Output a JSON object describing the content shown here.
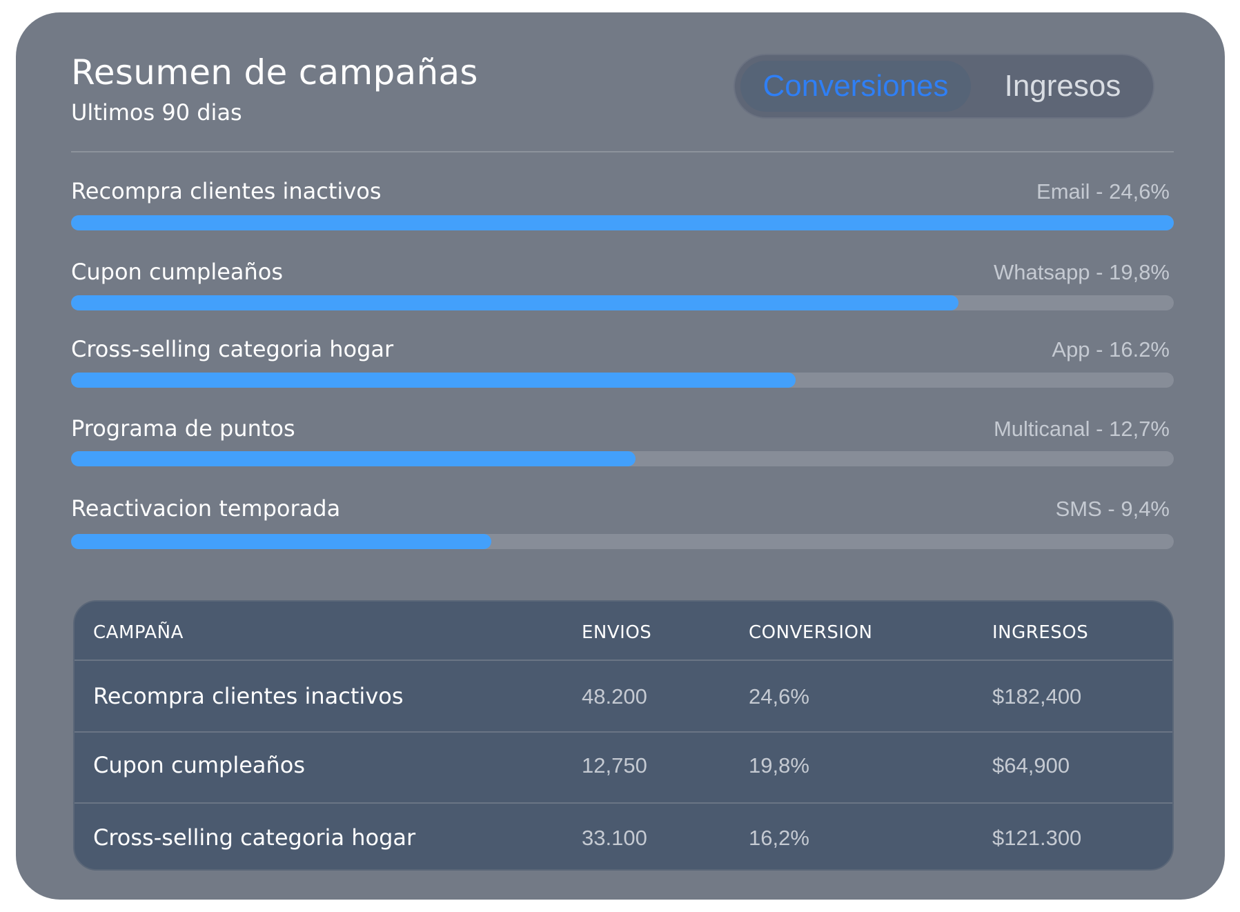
{
  "header": {
    "title": "Resumen de campañas",
    "subtitle": "Ultimos 90 dias"
  },
  "toggle": {
    "options": [
      {
        "label": "Conversiones",
        "active": true
      },
      {
        "label": "Ingresos",
        "active": false
      }
    ]
  },
  "campaign_bars": [
    {
      "label": "Recompra clientes inactivos",
      "meta": "Email - 24,6%",
      "progress_fraction": 1.0
    },
    {
      "label": "Cupon cumpleaños",
      "meta": "Whatsapp - 19,8%",
      "progress_fraction": 0.805
    },
    {
      "label": "Cross-selling categoria hogar",
      "meta": "App - 16.2%",
      "progress_fraction": 0.657
    },
    {
      "label": "Programa de puntos",
      "meta": "Multicanal - 12,7%",
      "progress_fraction": 0.512
    },
    {
      "label": "Reactivacion temporada",
      "meta": "SMS - 9,4%",
      "progress_fraction": 0.381
    }
  ],
  "table": {
    "headers": [
      "CAMPAÑA",
      "ENVIOS",
      "CONVERSION",
      "INGRESOS"
    ],
    "rows": [
      [
        "Recompra clientes inactivos",
        "48.200",
        "24,6%",
        "$182,400"
      ],
      [
        "Cupon cumpleaños",
        "12,750",
        "19,8%",
        "$64,900"
      ],
      [
        "Cross-selling categoria hogar",
        "33.100",
        "16,2%",
        "$121.300"
      ]
    ]
  },
  "colors": {
    "card_background": "#737a86",
    "bar_fill": "#43a0fb",
    "bar_track": "#878d98",
    "table_background": "#4b5a6f",
    "toggle_active_text": "#2f7ff5"
  }
}
